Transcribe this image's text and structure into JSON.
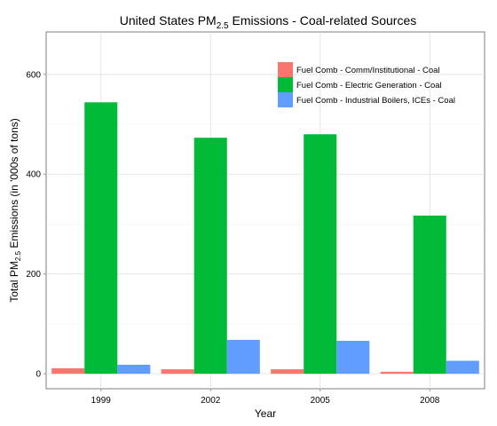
{
  "chart_data": {
    "type": "bar",
    "title": {
      "prefix": "United States PM",
      "sub": "2.5",
      "suffix": " Emissions - Coal-related Sources"
    },
    "xlabel": "Year",
    "ylabel": {
      "prefix": "Total PM",
      "sub": "2.5",
      "suffix": " Emissions (in '000s of tons)"
    },
    "categories": [
      "1999",
      "2002",
      "2005",
      "2008"
    ],
    "series": [
      {
        "name": "Fuel Comb - Comm/Institutional - Coal",
        "color": "#F8766D",
        "values": [
          11,
          9,
          9,
          4
        ]
      },
      {
        "name": "Fuel Comb - Electric Generation - Coal",
        "color": "#00BA38",
        "values": [
          544,
          473,
          480,
          317
        ]
      },
      {
        "name": "Fuel Comb - Industrial Boilers, ICEs - Coal",
        "color": "#619CFF",
        "values": [
          18,
          68,
          66,
          26
        ]
      }
    ],
    "ylim": [
      -30,
      685
    ],
    "yticks": [
      0,
      200,
      400,
      600
    ],
    "grid": true,
    "legend_position": "top-right"
  }
}
